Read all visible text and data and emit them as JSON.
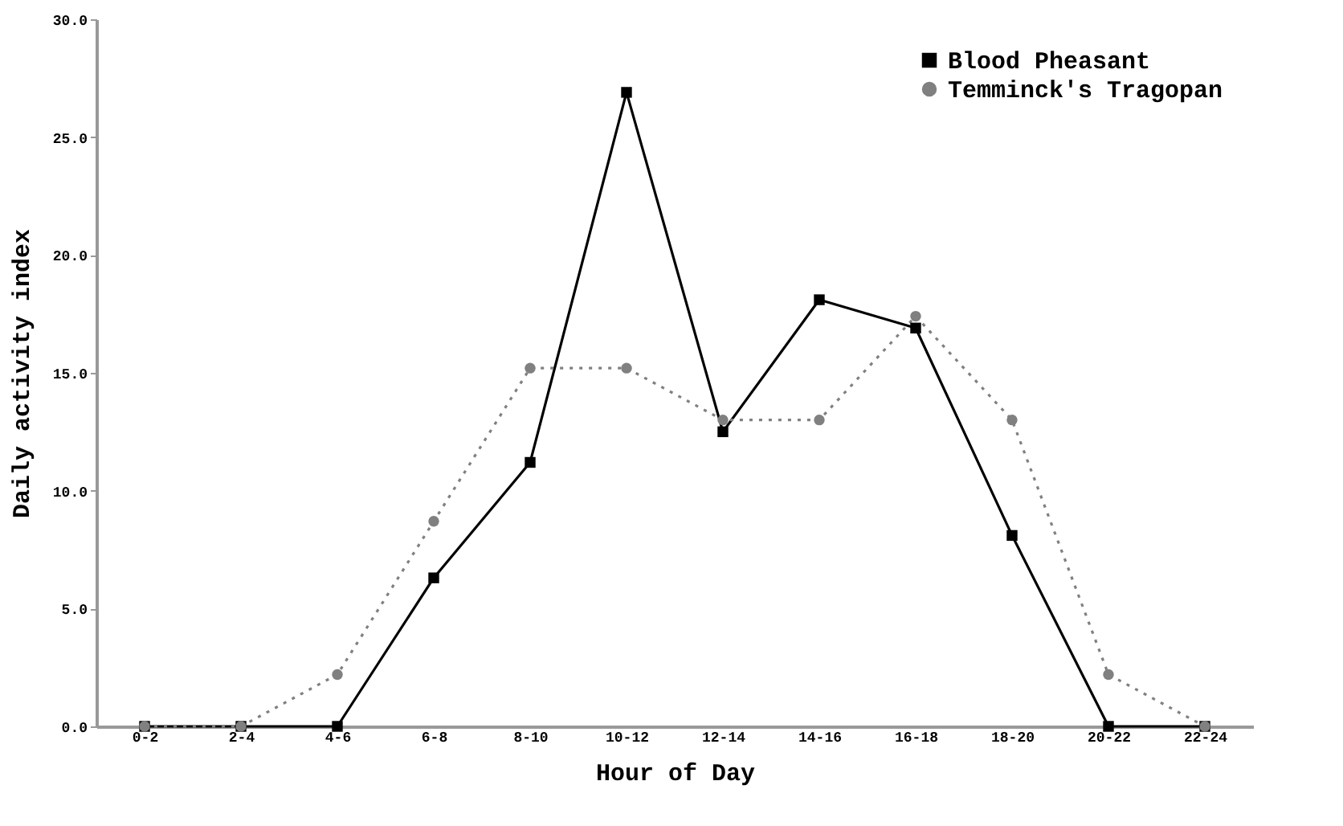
{
  "chart_data": {
    "type": "line",
    "xlabel": "Hour of Day",
    "ylabel": "Daily activity index",
    "categories": [
      "0-2",
      "2-4",
      "4-6",
      "6-8",
      "8-10",
      "10-12",
      "12-14",
      "14-16",
      "16-18",
      "18-20",
      "20-22",
      "22-24"
    ],
    "series": [
      {
        "name": "Blood Pheasant",
        "color": "#000000",
        "marker": "square",
        "line_style": "solid",
        "values": [
          0,
          0,
          0,
          6.3,
          11.2,
          26.9,
          12.5,
          18.1,
          16.9,
          8.1,
          0,
          0
        ]
      },
      {
        "name": "Temminck's Tragopan",
        "color": "#808080",
        "marker": "circle",
        "line_style": "dotted",
        "values": [
          0,
          0,
          2.2,
          8.7,
          15.2,
          15.2,
          13.0,
          13.0,
          17.4,
          13.0,
          2.2,
          0
        ]
      }
    ],
    "ylim": [
      0,
      30
    ],
    "yticks": [
      {
        "value": 0,
        "label": "0.0"
      },
      {
        "value": 5,
        "label": "5.0"
      },
      {
        "value": 10,
        "label": "10.0"
      },
      {
        "value": 15,
        "label": "15.0"
      },
      {
        "value": 20,
        "label": "20.0"
      },
      {
        "value": 25,
        "label": "25.0"
      },
      {
        "value": 30,
        "label": "30.0"
      }
    ],
    "grid": false,
    "legend": "top right"
  }
}
